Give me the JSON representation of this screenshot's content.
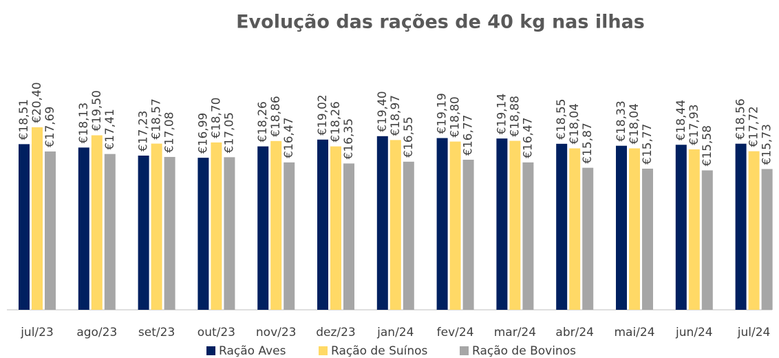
{
  "chart_data": {
    "type": "bar",
    "title": "Evolução das rações de 40 kg nas ilhas",
    "categories": [
      "jul/23",
      "ago/23",
      "set/23",
      "out/23",
      "nov/23",
      "dez/23",
      "jan/24",
      "fev/24",
      "mar/24",
      "abr/24",
      "mai/24",
      "jun/24",
      "jul/24"
    ],
    "series": [
      {
        "name": "Ração Aves",
        "color": "#002060",
        "values": [
          18.51,
          18.13,
          17.23,
          16.99,
          18.26,
          19.02,
          19.4,
          19.19,
          19.14,
          18.55,
          18.33,
          18.44,
          18.56
        ],
        "value_labels": [
          "€18,51",
          "€18,13",
          "€17,23",
          "€16,99",
          "€18,26",
          "€19,02",
          "€19,40",
          "€19,19",
          "€19,14",
          "€18,55",
          "€18,33",
          "€18,44",
          "€18,56"
        ]
      },
      {
        "name": "Ração de Suínos",
        "color": "#FFD966",
        "values": [
          20.4,
          19.5,
          18.57,
          18.7,
          18.86,
          18.26,
          18.97,
          18.8,
          18.88,
          18.04,
          18.04,
          17.93,
          17.72
        ],
        "value_labels": [
          "€20,40",
          "€19,50",
          "€18,57",
          "€18,70",
          "€18,86",
          "€18,26",
          "€18,97",
          "€18,80",
          "€18,88",
          "€18,04",
          "€18,04",
          "€17,93",
          "€17,72"
        ]
      },
      {
        "name": "Ração de Bovinos",
        "color": "#A6A6A6",
        "values": [
          17.69,
          17.41,
          17.08,
          17.05,
          16.47,
          16.35,
          16.55,
          16.77,
          16.47,
          15.87,
          15.77,
          15.58,
          15.73
        ],
        "value_labels": [
          "€17,69",
          "€17,41",
          "€17,08",
          "€17,05",
          "€16,47",
          "€16,35",
          "€16,55",
          "€16,77",
          "€16,47",
          "€15,87",
          "€15,77",
          "€15,58",
          "€15,73"
        ]
      }
    ],
    "ylim": [
      0,
      30
    ]
  }
}
